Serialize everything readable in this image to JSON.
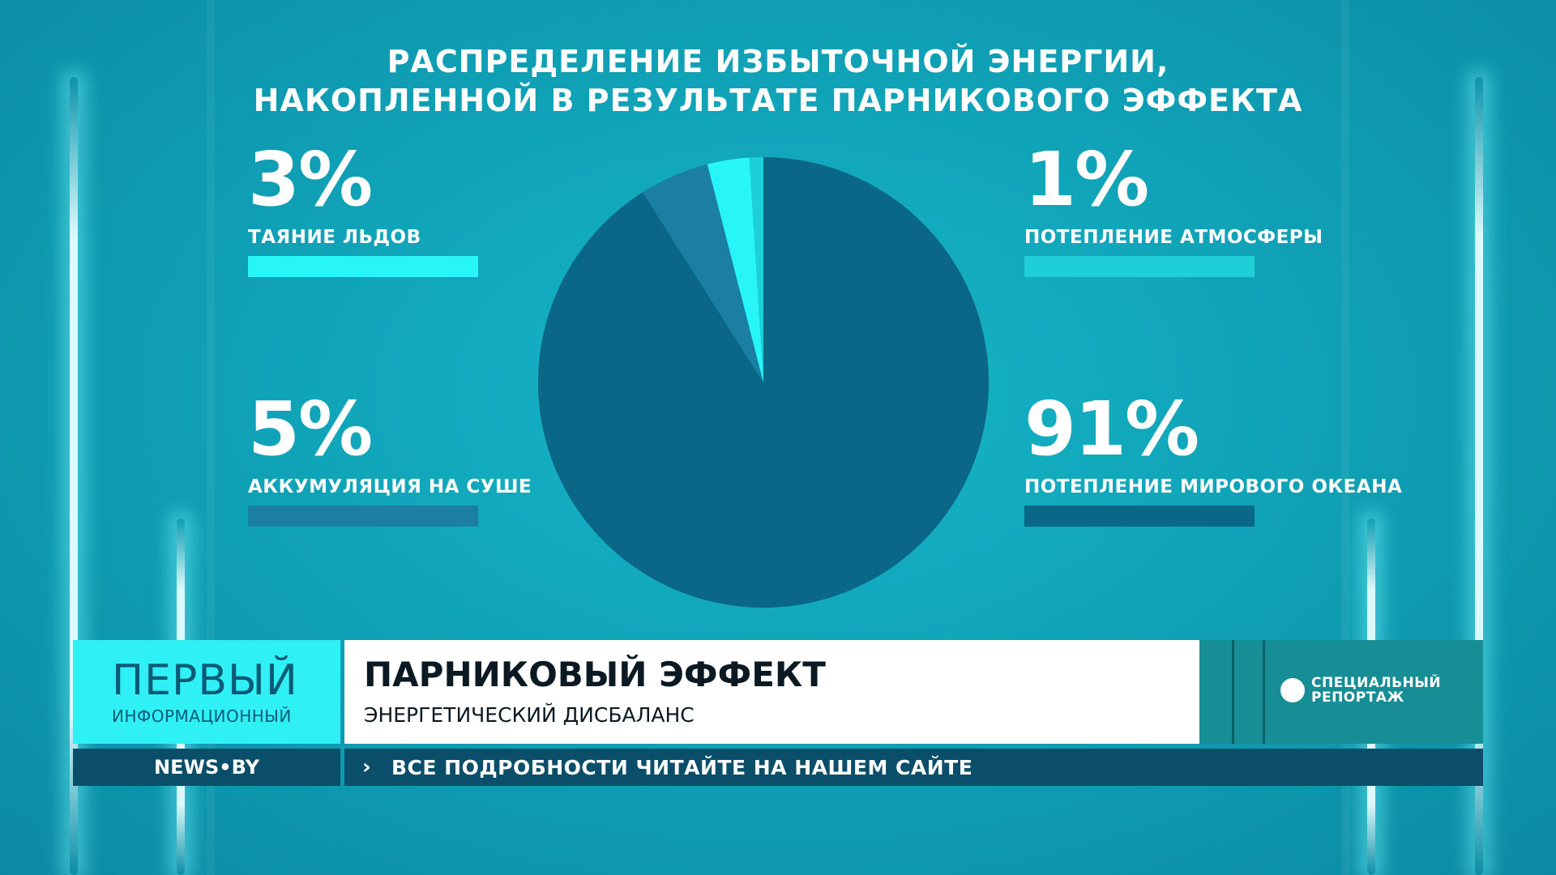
{
  "chart_data": {
    "type": "pie",
    "title": "РАСПРЕДЕЛЕНИЕ ИЗБЫТОЧНОЙ ЭНЕРГИИ, НАКОПЛЕННОЙ В РЕЗУЛЬТАТЕ ПАРНИКОВОГО ЭФФЕКТА",
    "title_lines": [
      "РАСПРЕДЕЛЕНИЕ ИЗБЫТОЧНОЙ ЭНЕРГИИ,",
      "НАКОПЛЕННОЙ В РЕЗУЛЬТАТЕ ПАРНИКОВОГО ЭФФЕКТА"
    ],
    "slices": [
      {
        "label": "ПОТЕПЛЕНИЕ МИРОВОГО ОКЕАНА",
        "value": 91,
        "pct_label": "91%",
        "color": "#0a6787"
      },
      {
        "label": "АККУМУЛЯЦИЯ НА СУШЕ",
        "value": 5,
        "pct_label": "5%",
        "color": "#1b7fa3"
      },
      {
        "label": "ТАЯНИЕ ЛЬДОВ",
        "value": 3,
        "pct_label": "3%",
        "color": "#27f5f8"
      },
      {
        "label": "ПОТЕПЛЕНИЕ АТМОСФЕРЫ",
        "value": 1,
        "pct_label": "1%",
        "color": "#1ecfd8"
      }
    ],
    "legend_order": [
      {
        "slice": 2,
        "position": "top-left"
      },
      {
        "slice": 3,
        "position": "top-right"
      },
      {
        "slice": 1,
        "position": "bottom-left"
      },
      {
        "slice": 0,
        "position": "bottom-right"
      }
    ]
  },
  "lower_third": {
    "logo_main": "ПЕРВЫЙ",
    "logo_sub": "ИНФОРМАЦИОННЫЙ",
    "headline": "ПАРНИКОВЫЙ ЭФФЕКТ",
    "subheadline": "ЭНЕРГЕТИЧЕСКИЙ ДИСБАЛАНС",
    "badge_line1": "СПЕЦИАЛЬНЫЙ",
    "badge_line2": "РЕПОРТАЖ",
    "site": "NEWS•BY",
    "ticker_arrow": "›",
    "ticker": "ВСЕ ПОДРОБНОСТИ ЧИТАЙТЕ НА НАШЕМ САЙТЕ"
  }
}
